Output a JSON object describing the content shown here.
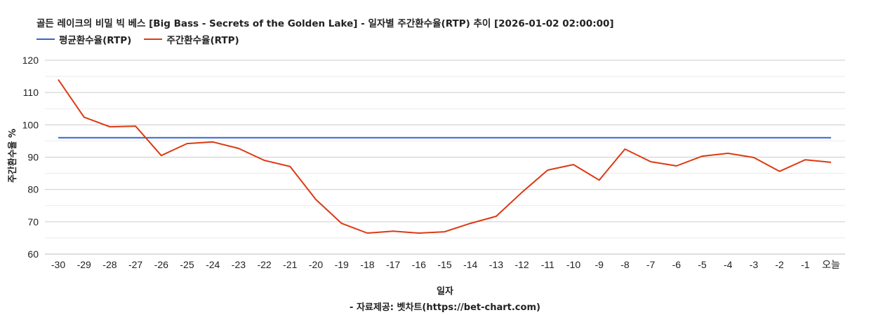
{
  "title": "골든 레이크의 비밀 빅 베스 [Big Bass - Secrets of the Golden Lake] - 일자별 주간환수율(RTP) 추이 [2026-01-02 02:00:00]",
  "legend": [
    {
      "label": "평균환수율(RTP)",
      "color": "#3366cc"
    },
    {
      "label": "주간환수율(RTP)",
      "color": "#dc3912"
    }
  ],
  "x_axis_title": "일자",
  "y_axis_title": "주간환수율 %",
  "source": "- 자료제공: 벳차트(https://bet-chart.com)",
  "chart_data": {
    "type": "line",
    "title": "골든 레이크의 비밀 빅 베스 [Big Bass - Secrets of the Golden Lake] - 일자별 주간환수율(RTP) 추이 [2026-01-02 02:00:00]",
    "xlabel": "일자",
    "ylabel": "주간환수율 %",
    "ylim": [
      60,
      120
    ],
    "yticks": [
      60,
      70,
      80,
      90,
      100,
      110,
      120
    ],
    "grid": true,
    "legend_position": "top",
    "categories": [
      "-30",
      "-29",
      "-28",
      "-27",
      "-26",
      "-25",
      "-24",
      "-23",
      "-22",
      "-21",
      "-20",
      "-19",
      "-18",
      "-17",
      "-16",
      "-15",
      "-14",
      "-13",
      "-12",
      "-11",
      "-10",
      "-9",
      "-8",
      "-7",
      "-6",
      "-5",
      "-4",
      "-3",
      "-2",
      "-1",
      "오늘"
    ],
    "series": [
      {
        "name": "평균환수율(RTP)",
        "color": "#3366cc",
        "values": [
          96.0,
          96.0,
          96.0,
          96.0,
          96.0,
          96.0,
          96.0,
          96.0,
          96.0,
          96.0,
          96.0,
          96.0,
          96.0,
          96.0,
          96.0,
          96.0,
          96.0,
          96.0,
          96.0,
          96.0,
          96.0,
          96.0,
          96.0,
          96.0,
          96.0,
          96.0,
          96.0,
          96.0,
          96.0,
          96.0,
          96.0
        ]
      },
      {
        "name": "주간환수율(RTP)",
        "color": "#dc3912",
        "values": [
          114.0,
          102.4,
          99.4,
          99.6,
          90.5,
          94.2,
          94.7,
          92.7,
          89.0,
          87.1,
          76.9,
          69.5,
          66.5,
          67.1,
          66.5,
          66.9,
          69.5,
          71.7,
          79.1,
          86.0,
          87.7,
          82.9,
          92.5,
          88.6,
          87.3,
          90.3,
          91.2,
          89.9,
          85.6,
          89.2,
          88.4
        ]
      }
    ]
  }
}
